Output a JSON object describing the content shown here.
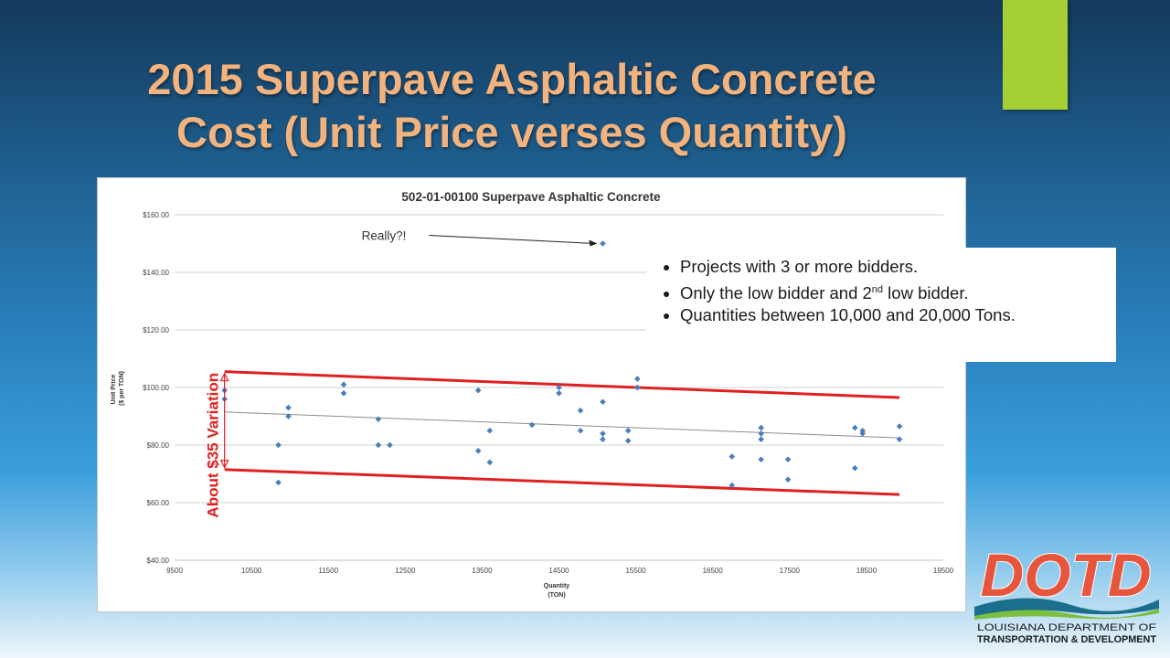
{
  "slide": {
    "title_line1": "2015 Superpave Asphaltic Concrete",
    "title_line2": "Cost (Unit Price verses Quantity)"
  },
  "notes": [
    {
      "text": "Projects with 3 or more bidders."
    },
    {
      "text_before": "Only the low bidder and 2",
      "superscript": "nd",
      "text_after": " low bidder."
    },
    {
      "text": "Quantities between 10,000 and 20,000 Tons."
    }
  ],
  "annotations": {
    "outlier_label": "Really?!",
    "variation_label": "About $35 Variation"
  },
  "logo": {
    "wordmark": "DOTD",
    "line1": "LOUISIANA DEPARTMENT OF",
    "line2": "TRANSPORTATION & DEVELOPMENT",
    "colors": {
      "primary": "#e8553d",
      "teal": "#1b6f8c",
      "green": "#7bbf3e"
    }
  },
  "colors": {
    "title": "#f2b37e",
    "accent_bar": "#a5cf35",
    "points": "#4a7ebb",
    "band": "#e02020",
    "trend": "#8c8c8c"
  },
  "chart_data": {
    "type": "scatter",
    "title": "502-01-00100 Superpave Asphaltic Concrete",
    "xlabel": "Quantity",
    "xlabel_unit": "(TON)",
    "ylabel": "Unit Price",
    "ylabel_unit": "($ per TON)",
    "xlim": [
      9500,
      19500
    ],
    "ylim": [
      40,
      160
    ],
    "x_ticks": [
      9500,
      10500,
      11500,
      12500,
      13500,
      14500,
      15500,
      16500,
      17500,
      18500,
      19500
    ],
    "x_tick_labels": [
      "9500",
      "10500",
      "11500",
      "12500",
      "13500",
      "14500",
      "15500",
      "16500",
      "17500",
      "18500",
      "19500"
    ],
    "y_ticks": [
      40,
      60,
      80,
      100,
      120,
      140,
      160
    ],
    "y_tick_labels": [
      "$40.00",
      "$60.00",
      "$80.00",
      "$100.00",
      "$120.00",
      "$140.00",
      "$160.00"
    ],
    "grid": true,
    "points": [
      {
        "x": 10150,
        "y": 99
      },
      {
        "x": 10150,
        "y": 96
      },
      {
        "x": 10850,
        "y": 80
      },
      {
        "x": 10850,
        "y": 67
      },
      {
        "x": 10980,
        "y": 93
      },
      {
        "x": 10980,
        "y": 90
      },
      {
        "x": 11700,
        "y": 101
      },
      {
        "x": 11700,
        "y": 98
      },
      {
        "x": 12150,
        "y": 89
      },
      {
        "x": 12150,
        "y": 80
      },
      {
        "x": 12300,
        "y": 80
      },
      {
        "x": 13450,
        "y": 99
      },
      {
        "x": 13450,
        "y": 78
      },
      {
        "x": 13600,
        "y": 85
      },
      {
        "x": 13600,
        "y": 74
      },
      {
        "x": 14150,
        "y": 87
      },
      {
        "x": 14500,
        "y": 100
      },
      {
        "x": 14500,
        "y": 98
      },
      {
        "x": 14780,
        "y": 92
      },
      {
        "x": 14780,
        "y": 85
      },
      {
        "x": 15070,
        "y": 150
      },
      {
        "x": 15070,
        "y": 95
      },
      {
        "x": 15070,
        "y": 84
      },
      {
        "x": 15070,
        "y": 82
      },
      {
        "x": 15400,
        "y": 85
      },
      {
        "x": 15400,
        "y": 81.5
      },
      {
        "x": 15520,
        "y": 103
      },
      {
        "x": 15520,
        "y": 100
      },
      {
        "x": 16750,
        "y": 76
      },
      {
        "x": 16750,
        "y": 66
      },
      {
        "x": 17130,
        "y": 86
      },
      {
        "x": 17130,
        "y": 84
      },
      {
        "x": 17130,
        "y": 82
      },
      {
        "x": 17130,
        "y": 75
      },
      {
        "x": 17480,
        "y": 75
      },
      {
        "x": 17480,
        "y": 68
      },
      {
        "x": 18350,
        "y": 86
      },
      {
        "x": 18350,
        "y": 72
      },
      {
        "x": 18450,
        "y": 85
      },
      {
        "x": 18450,
        "y": 84
      },
      {
        "x": 18930,
        "y": 86.5
      },
      {
        "x": 18930,
        "y": 82
      }
    ],
    "trendline": {
      "x": [
        10150,
        18930
      ],
      "y": [
        91.5,
        82.5
      ]
    },
    "upper_band": {
      "x": [
        10150,
        18930
      ],
      "y": [
        105.5,
        96.5
      ]
    },
    "lower_band": {
      "x": [
        10150,
        18930
      ],
      "y": [
        71.5,
        62.8
      ]
    },
    "outlier_point": {
      "x": 15070,
      "y": 150
    }
  }
}
